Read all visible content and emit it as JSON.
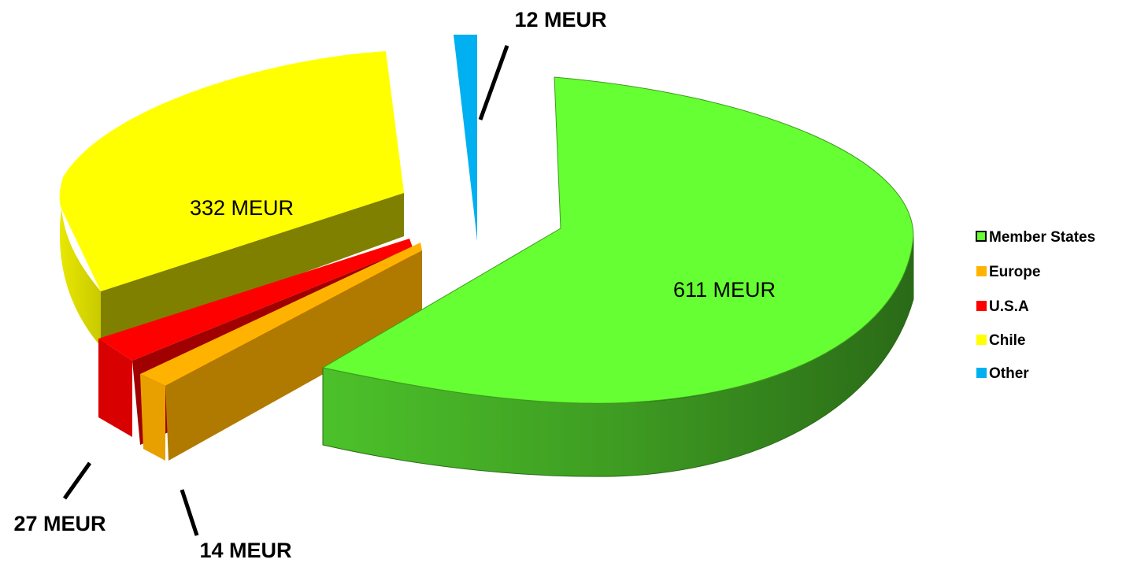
{
  "chart_data": {
    "type": "pie",
    "style": "3d-exploded",
    "slices": [
      {
        "name": "Member States",
        "value": 611,
        "label": "611 MEUR",
        "color": "#66ff33"
      },
      {
        "name": "Europe",
        "value": 14,
        "label": "14 MEUR",
        "color": "#ffb300"
      },
      {
        "name": "U.S.A",
        "value": 27,
        "label": "27 MEUR",
        "color": "#ff0000"
      },
      {
        "name": "Chile",
        "value": 332,
        "label": "332 MEUR",
        "color": "#ffff00"
      },
      {
        "name": "Other",
        "value": 12,
        "label": "12 MEUR",
        "color": "#00b0f0"
      }
    ],
    "legend": {
      "position": "right",
      "entries": [
        "Member States",
        "Europe",
        "U.S.A",
        "Chile",
        "Other"
      ]
    }
  }
}
